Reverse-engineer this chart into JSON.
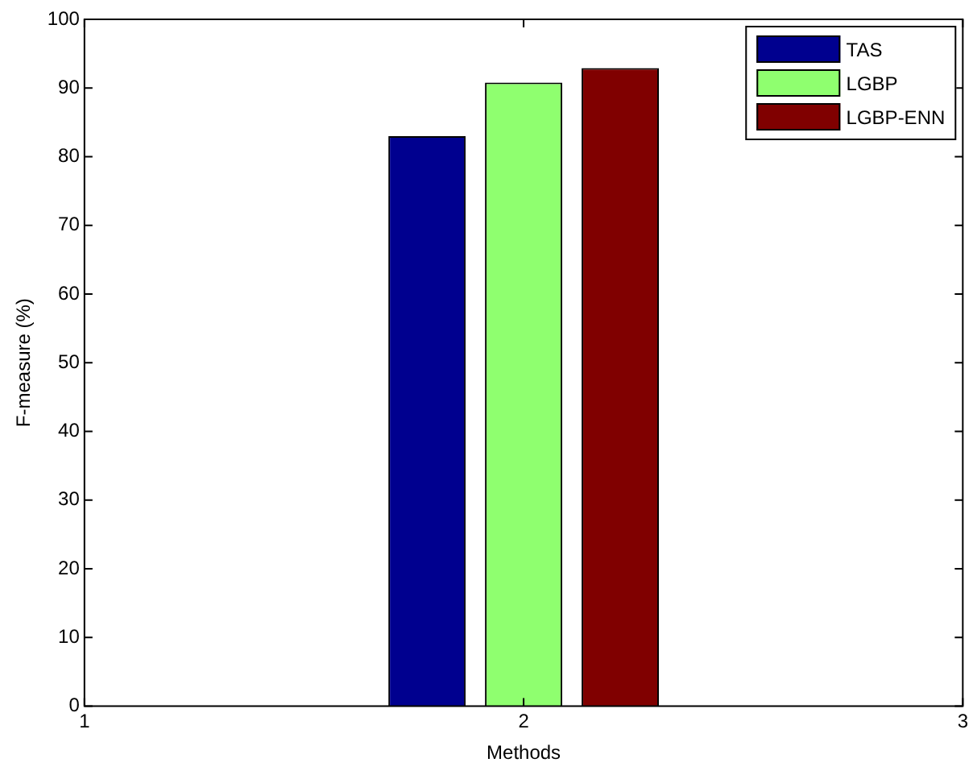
{
  "chart_data": {
    "type": "bar",
    "xlim": [
      1,
      3
    ],
    "xticks": [
      1,
      2,
      3
    ],
    "ylim": [
      0,
      100
    ],
    "yticks": [
      0,
      10,
      20,
      30,
      40,
      50,
      60,
      70,
      80,
      90,
      100
    ],
    "xlabel": "Methods",
    "ylabel": "F-measure (%)",
    "legend": "top right",
    "grid": false,
    "series": [
      {
        "name": "TAS",
        "color": "#00008f",
        "x": [
          1.78
        ],
        "values": [
          83
        ]
      },
      {
        "name": "LGBP",
        "color": "#8fff6f",
        "x": [
          2
        ],
        "values": [
          90.8
        ]
      },
      {
        "name": "LGBP-ENN",
        "color": "#800000",
        "x": [
          2.22
        ],
        "values": [
          92.9
        ]
      }
    ]
  }
}
